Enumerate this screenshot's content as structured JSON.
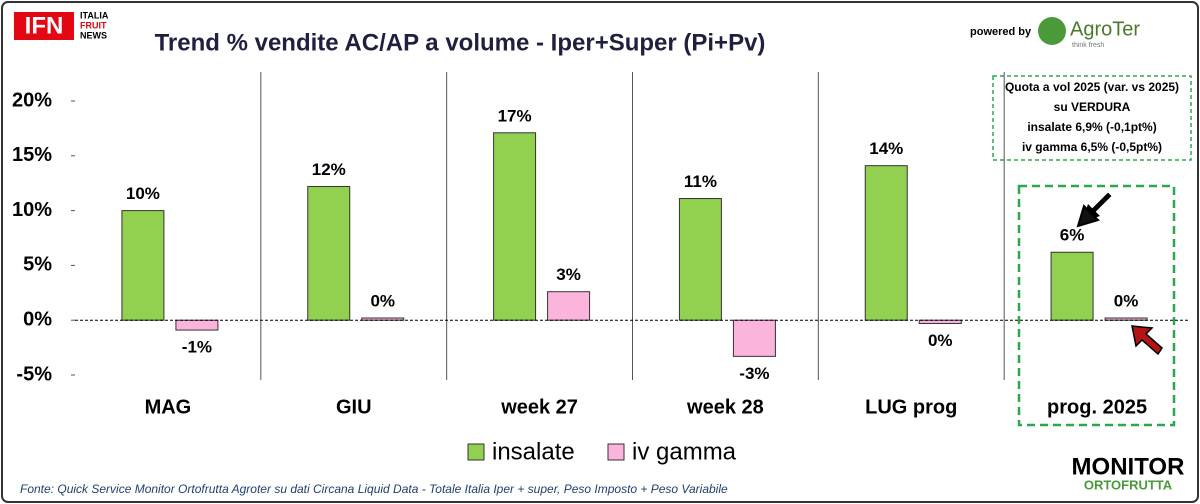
{
  "header": {
    "logo": "IFN",
    "logo_lines": [
      "ITALIA",
      "FRUIT",
      "NEWS"
    ],
    "powered_by": "powered by",
    "partner": "AgroTer",
    "partner_tagline": "think fresh",
    "brand": [
      "MONITOR",
      "ORTOFRUTTA"
    ]
  },
  "chart_data": {
    "type": "bar",
    "title": "Trend % vendite AC/AP a volume -  Iper+Super (Pi+Pv)",
    "categories": [
      "MAG",
      "GIU",
      "week 27",
      "week 28",
      "LUG prog",
      "prog. 2025"
    ],
    "series": [
      {
        "name": "insalate",
        "color": "#92d050",
        "values": [
          10,
          12.2,
          17.1,
          11.1,
          14.1,
          6.2
        ],
        "value_labels": [
          "10%",
          "12%",
          "17%",
          "11%",
          "14%",
          "6%"
        ]
      },
      {
        "name": "iv gamma",
        "color": "#fbb4dc",
        "values": [
          -0.9,
          0.2,
          2.6,
          -3.3,
          -0.3,
          0.2
        ],
        "value_labels": [
          "-1%",
          "0%",
          "3%",
          "-3%",
          "0%",
          "0%"
        ]
      }
    ],
    "ylim": [
      -5,
      20
    ],
    "yticks": [
      {
        "value": -5,
        "label": "-5%"
      },
      {
        "value": 0,
        "label": "0%"
      },
      {
        "value": 5,
        "label": "5%"
      },
      {
        "value": 10,
        "label": "10%"
      },
      {
        "value": 15,
        "label": "15%"
      },
      {
        "value": 20,
        "label": "20%"
      }
    ],
    "legend": "bottom",
    "annotations": [
      "Quota a vol 2025 (var. vs 2025)",
      "su VERDURA",
      "insalate 6,9% (-0,1pt%)",
      "iv gamma 6,5% (-0,5pt%)"
    ],
    "source": "Fonte: Quick Service Monitor Ortofrutta Agroter su dati Circana Liquid Data - Totale Italia Iper + super, Peso Imposto + Peso Variabile"
  }
}
